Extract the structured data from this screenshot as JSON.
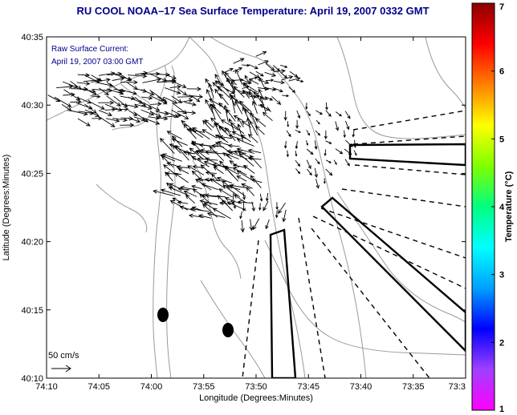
{
  "header": {
    "title": "RU COOL  NOAA–17  Sea Surface Temperature:  April 19, 2007 0332 GMT"
  },
  "annotation": {
    "line1": "Raw Surface Current:",
    "line2": "April 19, 2007 03:00 GMT"
  },
  "scale_legend": {
    "label": "50 cm/s"
  },
  "map": {
    "xlabel": "Longitude (Degrees:Minutes)",
    "ylabel": "Latitude (Degrees:Minutes)",
    "x_ticks": [
      "74:10",
      "74:05",
      "74:00",
      "73:55",
      "73:50",
      "73:45",
      "73:40",
      "73:35",
      "73:3"
    ],
    "y_ticks": [
      "40:35",
      "40:30",
      "40:25",
      "40:20",
      "40:15",
      "40:10"
    ],
    "lon_range_min": [
      -10,
      30
    ],
    "lat_range_min": [
      10,
      35
    ]
  },
  "colorbar": {
    "label": "Temperature (°C)",
    "ticks": [
      "1",
      "2",
      "3",
      "4",
      "5",
      "6",
      "7"
    ],
    "range": [
      1,
      7
    ],
    "stops": [
      "#ff00ff",
      "#a040ff",
      "#0000ff",
      "#00a0ff",
      "#00ffff",
      "#00ff80",
      "#80ff00",
      "#ffff00",
      "#ff8000",
      "#ff0000",
      "#8b0000"
    ]
  },
  "colors": {
    "title": "#00008b",
    "land_contour": "#9a9a9a",
    "vector": "#000000",
    "marker": "#000000"
  },
  "icons": {
    "scale_arrow": "right-arrow-icon",
    "markers": "filled-ellipse-icon"
  }
}
